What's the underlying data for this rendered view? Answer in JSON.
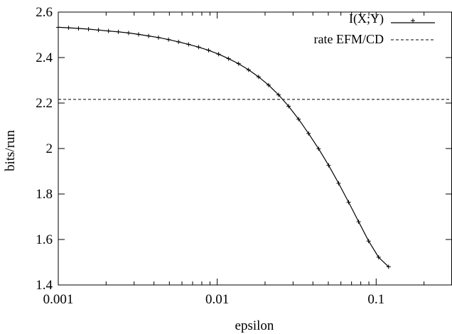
{
  "chart_data": {
    "type": "line",
    "title": "",
    "xlabel": "epsilon",
    "ylabel": "bits/run",
    "x_scale": "log",
    "xlim": [
      0.001,
      0.3
    ],
    "ylim": [
      1.4,
      2.6
    ],
    "x_ticks": [
      {
        "value": 0.001,
        "label": "0.001"
      },
      {
        "value": 0.01,
        "label": "0.01"
      },
      {
        "value": 0.1,
        "label": "0.1"
      }
    ],
    "y_ticks": [
      {
        "value": 1.4,
        "label": "1.4"
      },
      {
        "value": 1.6,
        "label": "1.6"
      },
      {
        "value": 1.8,
        "label": "1.8"
      },
      {
        "value": 2.0,
        "label": "2"
      },
      {
        "value": 2.2,
        "label": "2.2"
      },
      {
        "value": 2.4,
        "label": "2.4"
      },
      {
        "value": 2.6,
        "label": "2.6"
      }
    ],
    "grid": false,
    "legend_position": "top-right",
    "series": [
      {
        "name": "I(X;Y)",
        "style": "solid-with-plus-markers",
        "color": "#000000",
        "points": [
          [
            0.001,
            2.533
          ],
          [
            0.00116,
            2.531
          ],
          [
            0.00134,
            2.528
          ],
          [
            0.00155,
            2.525
          ],
          [
            0.00179,
            2.521
          ],
          [
            0.00207,
            2.517
          ],
          [
            0.00239,
            2.513
          ],
          [
            0.00277,
            2.508
          ],
          [
            0.0032,
            2.502
          ],
          [
            0.0037,
            2.495
          ],
          [
            0.00427,
            2.488
          ],
          [
            0.00494,
            2.479
          ],
          [
            0.00571,
            2.469
          ],
          [
            0.0066,
            2.458
          ],
          [
            0.00763,
            2.446
          ],
          [
            0.00882,
            2.432
          ],
          [
            0.0102,
            2.415
          ],
          [
            0.01179,
            2.395
          ],
          [
            0.01363,
            2.373
          ],
          [
            0.01575,
            2.346
          ],
          [
            0.01821,
            2.315
          ],
          [
            0.02105,
            2.279
          ],
          [
            0.02433,
            2.236
          ],
          [
            0.02812,
            2.186
          ],
          [
            0.03251,
            2.129
          ],
          [
            0.03758,
            2.066
          ],
          [
            0.04344,
            1.999
          ],
          [
            0.05021,
            1.926
          ],
          [
            0.05804,
            1.847
          ],
          [
            0.06709,
            1.764
          ],
          [
            0.07755,
            1.678
          ],
          [
            0.08964,
            1.593
          ],
          [
            0.10361,
            1.522
          ],
          [
            0.11977,
            1.48
          ]
        ]
      },
      {
        "name": "rate EFM/CD",
        "style": "dashed",
        "color": "#000000",
        "value": 2.216
      }
    ]
  }
}
